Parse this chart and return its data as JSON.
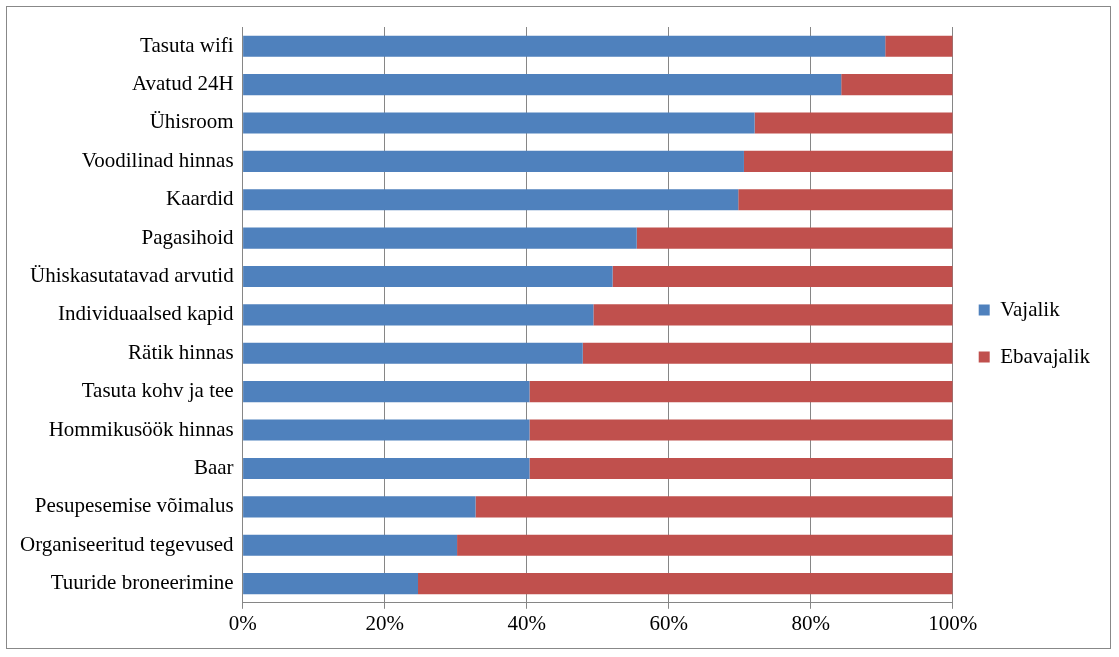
{
  "chart_data": {
    "type": "bar",
    "orientation": "horizontal",
    "stacked": true,
    "categories": [
      "Tasuta wifi",
      "Avatud 24H",
      "Ühisroom",
      "Voodilinad hinnas",
      "Kaardid",
      "Pagasihoid",
      "Ühiskasutatavad arvutid",
      "Individuaalsed kapid",
      "Rätik hinnas",
      "Tasuta kohv ja tee",
      "Hommikusöök hinnas",
      "Baar",
      "Pesupesemise võimalus",
      "Organiseeritud tegevused",
      "Tuuride broneerimine"
    ],
    "series": [
      {
        "name": "Vajalik",
        "color": "#4f81bd",
        "values": [
          90.5,
          84.3,
          72.1,
          70.6,
          69.8,
          55.5,
          52.1,
          49.4,
          47.9,
          40.4,
          40.4,
          40.4,
          32.8,
          30.2,
          24.7
        ]
      },
      {
        "name": "Ebavajalik",
        "color": "#c0504d",
        "values": [
          9.5,
          15.7,
          27.9,
          29.4,
          30.2,
          44.5,
          47.9,
          50.6,
          52.1,
          59.6,
          59.6,
          59.6,
          67.2,
          69.8,
          75.3
        ]
      }
    ],
    "xlim": [
      0,
      100
    ],
    "xticks": [
      {
        "value": 0,
        "label": "0%"
      },
      {
        "value": 20,
        "label": "20%"
      },
      {
        "value": 40,
        "label": "40%"
      },
      {
        "value": 60,
        "label": "60%"
      },
      {
        "value": 80,
        "label": "80%"
      },
      {
        "value": 100,
        "label": "100%"
      }
    ],
    "grid": "x",
    "legend": "right"
  }
}
